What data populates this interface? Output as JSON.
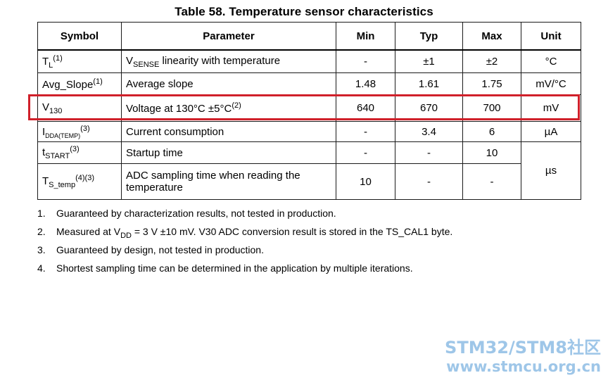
{
  "title": "Table 58. Temperature sensor characteristics",
  "headers": [
    "Symbol",
    "Parameter",
    "Min",
    "Typ",
    "Max",
    "Unit"
  ],
  "rows": [
    {
      "sym_main": "T",
      "sym_sub": "L",
      "sym_sup": "(1)",
      "param_pre": "V",
      "param_sub": "SENSE",
      "param_post": " linearity with temperature",
      "param_sup": "",
      "min": "-",
      "typ": "±1",
      "max": "±2",
      "unit": "°C"
    },
    {
      "sym_main": "Avg_Slope",
      "sym_sub": "",
      "sym_sup": "(1)",
      "param_pre": "Average slope",
      "param_sub": "",
      "param_post": "",
      "param_sup": "",
      "min": "1.48",
      "typ": "1.61",
      "max": "1.75",
      "unit": "mV/°C"
    },
    {
      "sym_main": "V",
      "sym_sub": "130",
      "sym_sup": "",
      "param_pre": "Voltage at 130°C ±5°C",
      "param_sub": "",
      "param_post": "",
      "param_sup": "(2)",
      "min": "640",
      "typ": "670",
      "max": "700",
      "unit": "mV"
    },
    {
      "sym_main": "I",
      "sym_sub": "DDA(TEMP)",
      "sym_sup": "(3)",
      "param_pre": "Current consumption",
      "param_sub": "",
      "param_post": "",
      "param_sup": "",
      "min": "-",
      "typ": "3.4",
      "max": "6",
      "unit": "µA"
    },
    {
      "sym_main": "t",
      "sym_sub": "START",
      "sym_sup": "(3)",
      "param_pre": "Startup time",
      "param_sub": "",
      "param_post": "",
      "param_sup": "",
      "min": "-",
      "typ": "-",
      "max": "10",
      "unit": "µs"
    },
    {
      "sym_main": "T",
      "sym_sub": "S_temp",
      "sym_sup": "(4)(3)",
      "param_pre": "ADC sampling time when reading the temperature",
      "param_sub": "",
      "param_post": "",
      "param_sup": "",
      "min": "10",
      "typ": "-",
      "max": "-",
      "unit": ""
    }
  ],
  "notes": [
    {
      "num": "1.",
      "text": "Guaranteed by characterization results, not tested in production."
    },
    {
      "num": "2.",
      "pre": "Measured at V",
      "sub": "DD",
      "post": " = 3 V ±10 mV. V30 ADC conversion result is stored in the TS_CAL1 byte."
    },
    {
      "num": "3.",
      "text": "Guaranteed by design, not tested in production."
    },
    {
      "num": "4.",
      "text": "Shortest sampling time can be determined in the application by multiple iterations."
    }
  ],
  "watermark": {
    "line1": "STM32/STM8社区",
    "line2": "www.stmcu.org.cn"
  },
  "colors": {
    "highlight": "#d0202a",
    "watermark": "#9ec6e8"
  }
}
